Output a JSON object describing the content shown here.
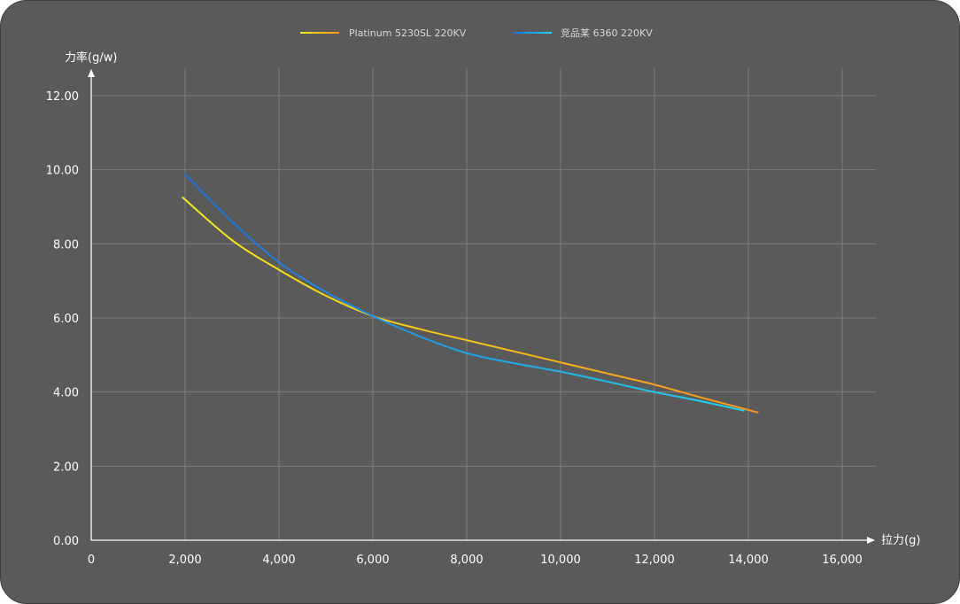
{
  "chart_data": {
    "type": "line",
    "xlabel": "拉力(g)",
    "ylabel": "力率(g/w)",
    "xlim": [
      0,
      16000
    ],
    "ylim": [
      0,
      12
    ],
    "x_ticks": [
      "0",
      "2,000",
      "4,000",
      "6,000",
      "8,000",
      "10,000",
      "12,000",
      "14,000",
      "16,000"
    ],
    "y_ticks": [
      "0.00",
      "2.00",
      "4.00",
      "6.00",
      "8.00",
      "10.00",
      "12.00"
    ],
    "grid": true,
    "legend_position": "top-center",
    "series": [
      {
        "name": "Platinum 5230SL 220KV",
        "color_start": "#f5ea1a",
        "color_end": "#f7941d",
        "x": [
          1950,
          3000,
          4000,
          5000,
          6000,
          7000,
          8000,
          9000,
          10000,
          11000,
          12000,
          13000,
          14200
        ],
        "y": [
          9.25,
          8.1,
          7.3,
          6.6,
          6.05,
          5.7,
          5.4,
          5.1,
          4.8,
          4.5,
          4.2,
          3.85,
          3.45
        ]
      },
      {
        "name": "竞品某 6360 220KV",
        "color_start": "#1e6ed8",
        "color_end": "#22d3f0",
        "x": [
          2000,
          3000,
          4000,
          5000,
          6000,
          7000,
          8000,
          9000,
          10000,
          11000,
          12000,
          13000,
          13900
        ],
        "y": [
          9.88,
          8.6,
          7.5,
          6.7,
          6.05,
          5.5,
          5.05,
          4.78,
          4.55,
          4.28,
          4.0,
          3.75,
          3.5
        ]
      }
    ]
  }
}
